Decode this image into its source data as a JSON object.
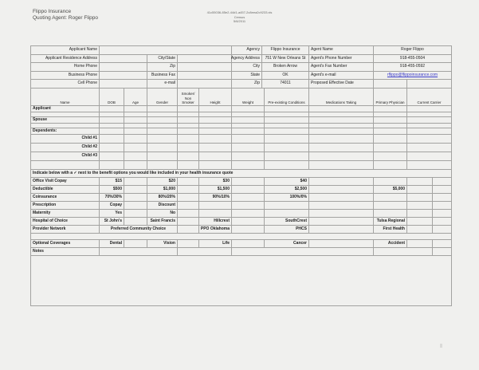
{
  "header": {
    "company": "Flippo Insurance",
    "quoting_agent": "Quoting Agent: Roger Flippo",
    "file_ref": "41c55036-85e2-44d1-a457-2c8eea2c9233.xls",
    "doc_type": "Census",
    "date": "5/6/2011"
  },
  "form": {
    "applicant_name": "Applicant Name",
    "residence_address": "Applicant Residence Address",
    "city_state": "City/State",
    "home_phone": "Home Phone",
    "zip": "Zip",
    "business_phone": "Business Phone",
    "business_fax": "Business Fax",
    "cell_phone": "Cell Phone",
    "email": "e-mail"
  },
  "agency": {
    "label": "Agency",
    "name": "Flippo Insurance",
    "address_label": "Agency Address",
    "address": "751 W New Orleans St",
    "city_label": "City",
    "city": "Broken Arrow",
    "state_label": "State",
    "state": "OK",
    "zip_label": "Zip",
    "zip": "74011",
    "agent_name_label": "Agent Name",
    "agent_name": "Roger Flippo",
    "phone_label": "Agent's Phone Number",
    "phone": "918-455-0504",
    "fax_label": "Agent's Fax Number",
    "fax": "918-455-0592",
    "email_label": "Agent's e-mail",
    "email": "rflippo@flippoinsurance.com",
    "effective_date_label": "Proposed Effective Date"
  },
  "census": {
    "headers": [
      "Name",
      "DOB",
      "Age",
      "Gender",
      "Smoker/ Non Smoker",
      "Height",
      "Weight",
      "Pre-existing Conditions",
      "Medications Taking",
      "Primary Physician",
      "Current Carrier"
    ],
    "row_labels": [
      "Applicant",
      "Spouse",
      "Dependents:",
      "Child #1",
      "Child #2",
      "Child #3"
    ]
  },
  "benefits": {
    "instruction": "Indicate below with a ✓ next to the benefit options you would like included in your health insurance quote",
    "rows": [
      {
        "label": "Office Visit Copay",
        "options": [
          "$15",
          "$20",
          "$30",
          "$40",
          ""
        ]
      },
      {
        "label": "Deductible",
        "options": [
          "$500",
          "$1,000",
          "$1,500",
          "$2,500",
          "$5,000"
        ]
      },
      {
        "label": "Coinsurance",
        "options": [
          "70%/30%",
          "80%/20%",
          "90%/10%",
          "100%/0%",
          ""
        ]
      },
      {
        "label": "Prescription",
        "options": [
          "Copay",
          "Discount",
          "",
          "",
          ""
        ]
      },
      {
        "label": "Maternity",
        "options": [
          "Yes",
          "No",
          "",
          "",
          ""
        ]
      },
      {
        "label": "Hospital of Choice",
        "options": [
          "St John's",
          "Saint Francis",
          "Hillcrest",
          "SouthCrest",
          "Tulsa Regional"
        ]
      },
      {
        "label": "Provider Network",
        "options": [
          "Preferred Community Choice",
          "PPO Oklahoma",
          "PHCS",
          "First Health"
        ]
      }
    ],
    "optional": {
      "label": "Optional Coverages",
      "options": [
        "Dental",
        "Vision",
        "Life",
        "Cancer",
        "Accident"
      ]
    },
    "notes_label": "Notes"
  }
}
